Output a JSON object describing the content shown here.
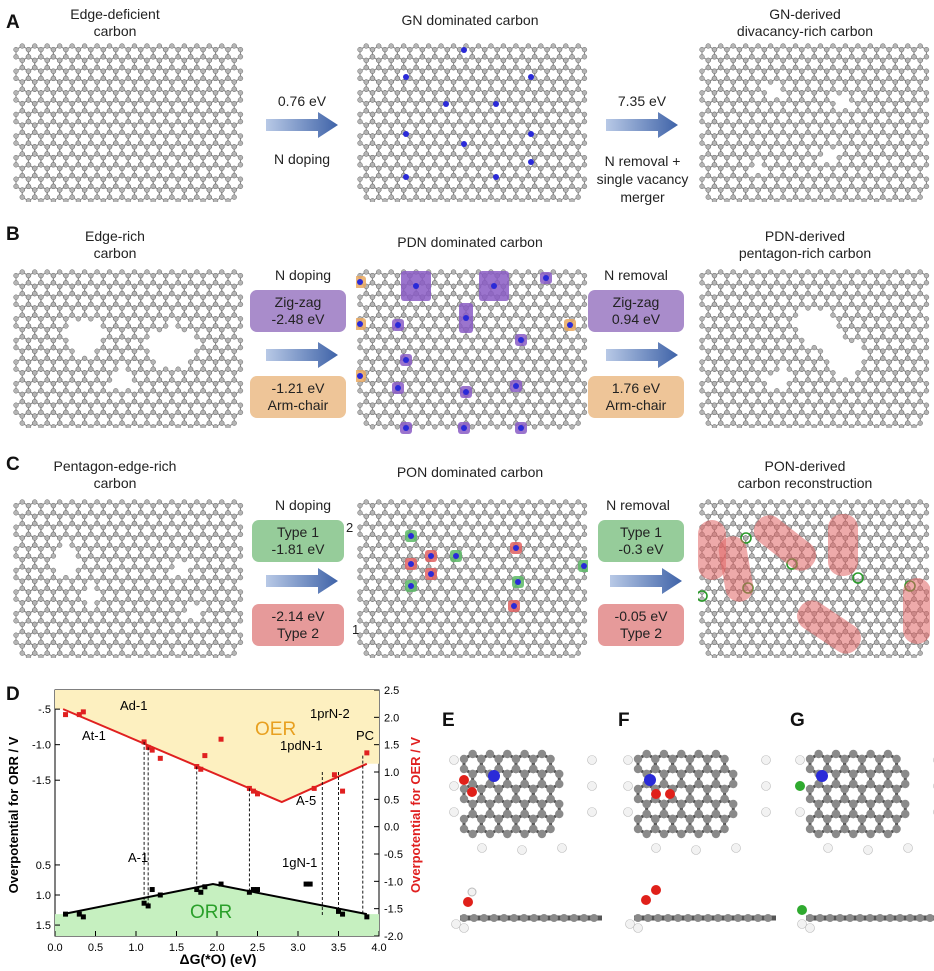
{
  "panels": {
    "A": {
      "letter": "A",
      "left_title": "Edge-deficient\ncarbon",
      "mid_title": "GN dominated carbon",
      "right_title": "GN-derived\ndivacancy-rich carbon",
      "arrow1_energy": "0.76 eV",
      "arrow1_label": "N doping",
      "arrow2_energy": "7.35 eV",
      "arrow2_label": "N removal +\nsingle vacancy\nmerger"
    },
    "B": {
      "letter": "B",
      "left_title": "Edge-rich\ncarbon",
      "mid_title": "PDN dominated carbon",
      "right_title": "PDN-derived\npentagon-rich carbon",
      "arrow1_label": "N doping",
      "arrow1_top_chip": [
        "Zig-zag",
        "-2.48 eV"
      ],
      "arrow1_bottom_chip": [
        "-1.21 eV",
        "Arm-chair"
      ],
      "arrow2_label": "N removal",
      "arrow2_top_chip": [
        "Zig-zag",
        "0.94 eV"
      ],
      "arrow2_bottom_chip": [
        "1.76 eV",
        "Arm-chair"
      ]
    },
    "C": {
      "letter": "C",
      "left_title": "Pentagon-edge-rich\ncarbon",
      "mid_title": "PON dominated carbon",
      "right_title": "PON-derived\ncarbon reconstruction",
      "arrow1_label": "N doping",
      "arrow1_top_chip": [
        "Type 1",
        "-1.81 eV"
      ],
      "arrow1_bottom_chip": [
        "-2.14 eV",
        "Type 2"
      ],
      "site_label_top": "2",
      "site_label_bottom": "1",
      "arrow2_label": "N removal",
      "arrow2_top_chip": [
        "Type 1",
        "-0.3 eV"
      ],
      "arrow2_bottom_chip": [
        "-0.05 eV",
        "Type 2"
      ]
    },
    "D": {
      "letter": "D"
    },
    "E": {
      "letter": "E"
    },
    "F": {
      "letter": "F"
    },
    "G": {
      "letter": "G"
    }
  },
  "colors": {
    "carbon": "#9a9a9a",
    "nitrogen": "#2a2ad8",
    "oxygen": "#e0201a",
    "hydrogen": "#f2f2f2",
    "chlorine": "#2faa2f",
    "purple_chip": "#a98ccb",
    "orange_chip": "#eec598",
    "green_chip": "#96cc9a",
    "red_chip": "#e69a9a",
    "oer_fill": "#fdf0c0",
    "orr_fill": "#c6f0c0"
  },
  "chart_data": {
    "type": "scatter",
    "xlabel": "ΔG(*O)  (eV)",
    "ylabel_left": "Overpotential for ORR / V",
    "ylabel_right": "Overpotential for OER / V",
    "xlim": [
      0.0,
      4.0
    ],
    "xticks": [
      "0.0",
      "0.5",
      "1.0",
      "1.5",
      "2.0",
      "2.5",
      "3.0",
      "3.5",
      "4.0"
    ],
    "left_ticks": [
      "-.5",
      "-1.0",
      "-1.5",
      "1.5",
      "1.0",
      "0.5"
    ],
    "right_ylim": [
      -2.0,
      2.5
    ],
    "right_ticks": [
      "2.5",
      "2.0",
      "1.5",
      "1.0",
      "0.5",
      "0.0",
      "-0.5",
      "-1.0",
      "-1.5",
      "-2.0"
    ],
    "region_labels": {
      "oer": "OER",
      "orr": "ORR"
    },
    "oer_line": {
      "x": [
        0.1,
        2.8,
        3.85
      ],
      "y": [
        2.15,
        0.45,
        1.15
      ]
    },
    "orr_line": {
      "x": [
        0.1,
        1.95,
        3.85
      ],
      "y": [
        -1.6,
        -1.05,
        -1.6
      ]
    },
    "series": [
      {
        "name": "OER",
        "x": [
          0.13,
          0.3,
          0.35,
          1.1,
          1.15,
          1.2,
          1.3,
          1.75,
          1.8,
          1.85,
          2.05,
          2.4,
          2.45,
          2.5,
          3.2,
          3.45,
          3.55,
          3.85
        ],
        "y": [
          2.05,
          2.05,
          2.1,
          1.55,
          1.45,
          1.4,
          1.25,
          1.1,
          1.05,
          1.3,
          1.6,
          0.7,
          0.65,
          0.6,
          0.7,
          0.95,
          0.65,
          1.35
        ]
      },
      {
        "name": "ORR",
        "x": [
          0.13,
          0.3,
          0.35,
          1.1,
          1.15,
          1.2,
          1.3,
          1.75,
          1.8,
          1.85,
          2.05,
          2.4,
          2.45,
          2.5,
          3.1,
          3.15,
          3.5,
          3.55,
          3.85
        ],
        "y": [
          -1.6,
          -1.6,
          -1.65,
          -1.4,
          -1.45,
          -1.15,
          -1.25,
          -1.15,
          -1.2,
          -1.1,
          -1.05,
          -1.2,
          -1.15,
          -1.15,
          -1.05,
          -1.05,
          -1.55,
          -1.6,
          -1.65
        ]
      }
    ],
    "annotations": [
      "Ad-1",
      "At-1",
      "1prN-2",
      "1pdN-1",
      "PC",
      "A-5",
      "A-1",
      "1gN-1"
    ]
  }
}
